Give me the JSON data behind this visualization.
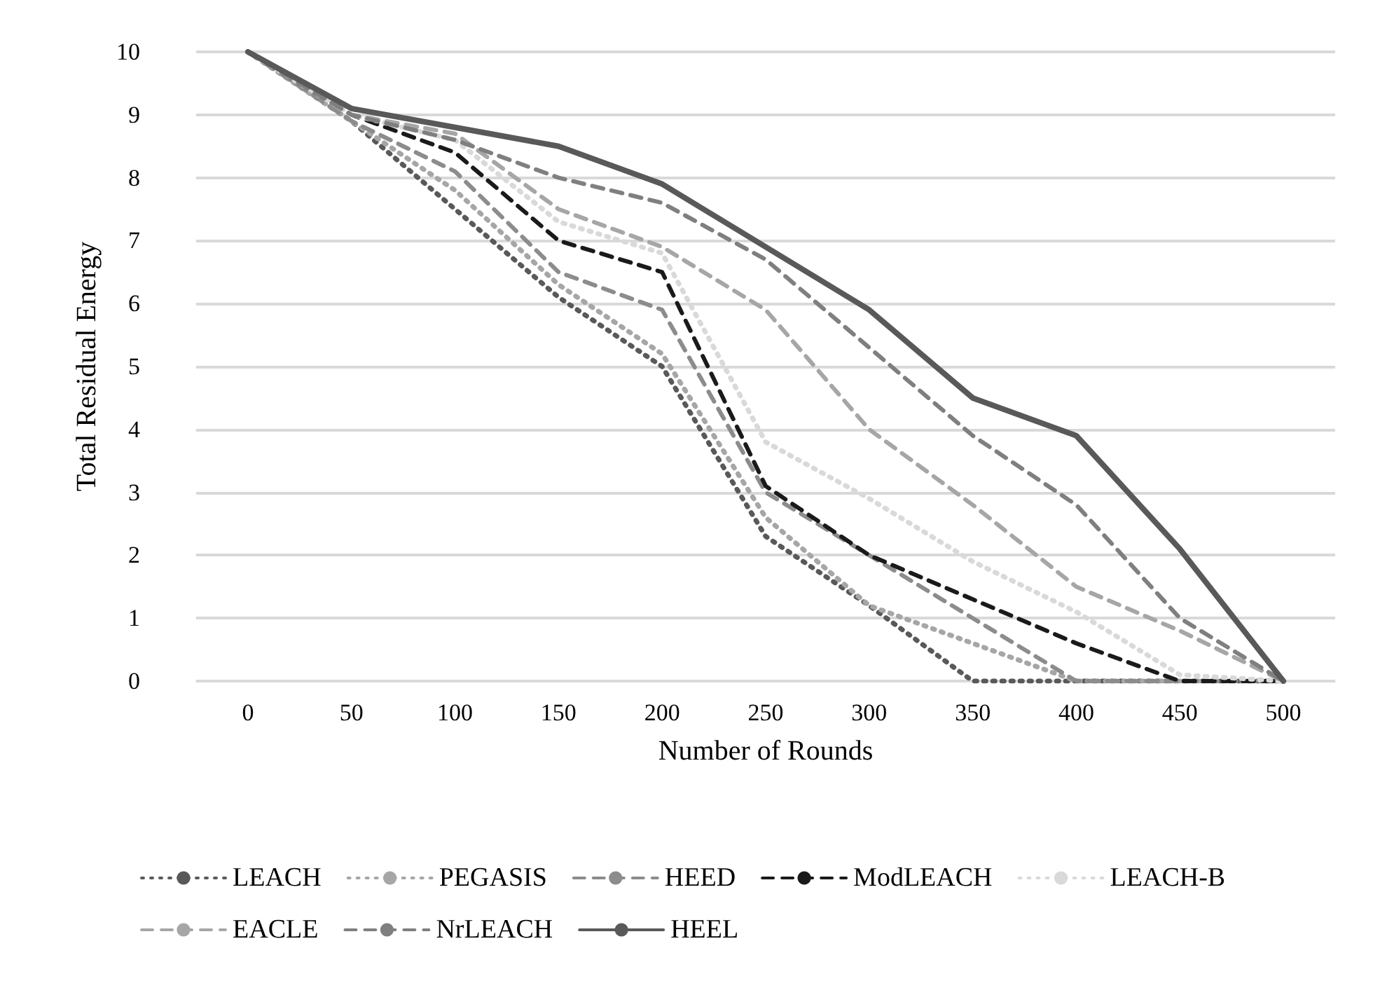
{
  "chart_data": {
    "type": "line",
    "xlabel": "Number of Rounds",
    "ylabel": "Total Residual Energy",
    "categories": [
      "0",
      "50",
      "100",
      "150",
      "200",
      "250",
      "300",
      "350",
      "400",
      "450",
      "500"
    ],
    "series": [
      {
        "name": "LEACH",
        "color": "#595959",
        "line_style": "dotted",
        "values": [
          10,
          8.9,
          7.5,
          6.1,
          5.0,
          2.3,
          1.2,
          0,
          0,
          0,
          0
        ]
      },
      {
        "name": "PEGASIS",
        "color": "#a6a6a6",
        "line_style": "dotted",
        "values": [
          10,
          8.9,
          7.8,
          6.3,
          5.2,
          2.6,
          1.2,
          0.6,
          0,
          0,
          0
        ]
      },
      {
        "name": "HEED",
        "color": "#8c8c8c",
        "line_style": "dashed",
        "values": [
          10,
          8.9,
          8.1,
          6.5,
          5.9,
          3.0,
          2.0,
          1.0,
          0,
          0,
          0
        ]
      },
      {
        "name": "ModLEACH",
        "color": "#1a1a1a",
        "line_style": "dashed",
        "values": [
          10,
          9.0,
          8.4,
          7.0,
          6.5,
          3.1,
          2.0,
          1.3,
          0.6,
          0,
          0
        ]
      },
      {
        "name": "LEACH-B",
        "color": "#d9d9d9",
        "line_style": "dotted",
        "values": [
          10,
          9.0,
          8.6,
          7.3,
          6.8,
          3.8,
          2.9,
          1.9,
          1.1,
          0.1,
          0
        ]
      },
      {
        "name": "EACLE",
        "color": "#a6a6a6",
        "line_style": "dashed",
        "values": [
          10,
          9.0,
          8.7,
          7.5,
          6.9,
          5.9,
          4.0,
          2.8,
          1.5,
          0.8,
          0
        ]
      },
      {
        "name": "NrLEACH",
        "color": "#7f7f7f",
        "line_style": "dashed",
        "values": [
          10,
          9.0,
          8.6,
          8.0,
          7.6,
          6.7,
          5.3,
          3.9,
          2.8,
          1.0,
          0
        ]
      },
      {
        "name": "HEEL",
        "color": "#595959",
        "line_style": "solid",
        "values": [
          10,
          9.1,
          8.8,
          8.5,
          7.9,
          6.9,
          5.9,
          4.5,
          3.9,
          2.1,
          0
        ]
      }
    ],
    "ylim": [
      0,
      10
    ],
    "yticks": [
      0,
      1,
      2,
      3,
      4,
      5,
      6,
      7,
      8,
      9,
      10
    ],
    "grid": "y",
    "legend": "bottom",
    "marker": "none"
  }
}
